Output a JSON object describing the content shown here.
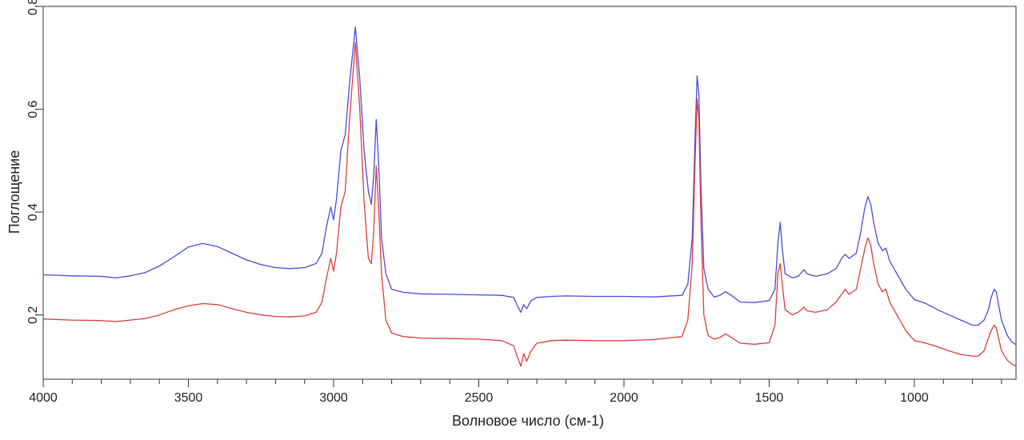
{
  "chart_data": {
    "type": "line",
    "title": "",
    "xlabel": "Волновое число (см-1)",
    "ylabel": "Поглощение",
    "xlim": [
      4000,
      650
    ],
    "ylim": [
      0.075,
      0.8
    ],
    "x_reversed": true,
    "grid": false,
    "legend": "none",
    "xticks": [
      4000,
      3500,
      3000,
      2500,
      2000,
      1500,
      1000
    ],
    "xtick_labels": [
      "4000",
      "3500",
      "3000",
      "2500",
      "2000",
      "1500",
      "1000"
    ],
    "x_minor_step": 100,
    "yticks": [
      0.2,
      0.4,
      0.6,
      0.8
    ],
    "ytick_labels": [
      "0,2",
      "0,4",
      "0,6",
      "0,8"
    ],
    "series": [
      {
        "color": "#4b4bdc",
        "points": [
          [
            4000,
            0.278
          ],
          [
            3900,
            0.276
          ],
          [
            3800,
            0.275
          ],
          [
            3750,
            0.272
          ],
          [
            3700,
            0.276
          ],
          [
            3650,
            0.282
          ],
          [
            3600,
            0.295
          ],
          [
            3550,
            0.313
          ],
          [
            3500,
            0.332
          ],
          [
            3450,
            0.339
          ],
          [
            3400,
            0.333
          ],
          [
            3350,
            0.32
          ],
          [
            3300,
            0.307
          ],
          [
            3250,
            0.298
          ],
          [
            3200,
            0.292
          ],
          [
            3150,
            0.29
          ],
          [
            3100,
            0.292
          ],
          [
            3060,
            0.3
          ],
          [
            3040,
            0.32
          ],
          [
            3025,
            0.37
          ],
          [
            3010,
            0.41
          ],
          [
            3000,
            0.385
          ],
          [
            2990,
            0.425
          ],
          [
            2975,
            0.52
          ],
          [
            2960,
            0.55
          ],
          [
            2945,
            0.65
          ],
          [
            2925,
            0.76
          ],
          [
            2910,
            0.66
          ],
          [
            2895,
            0.52
          ],
          [
            2880,
            0.44
          ],
          [
            2870,
            0.415
          ],
          [
            2862,
            0.47
          ],
          [
            2853,
            0.58
          ],
          [
            2845,
            0.5
          ],
          [
            2835,
            0.35
          ],
          [
            2820,
            0.28
          ],
          [
            2800,
            0.25
          ],
          [
            2760,
            0.244
          ],
          [
            2700,
            0.241
          ],
          [
            2600,
            0.24
          ],
          [
            2500,
            0.239
          ],
          [
            2420,
            0.238
          ],
          [
            2380,
            0.234
          ],
          [
            2365,
            0.215
          ],
          [
            2355,
            0.205
          ],
          [
            2345,
            0.22
          ],
          [
            2335,
            0.212
          ],
          [
            2320,
            0.228
          ],
          [
            2300,
            0.234
          ],
          [
            2250,
            0.236
          ],
          [
            2200,
            0.237
          ],
          [
            2100,
            0.236
          ],
          [
            2000,
            0.236
          ],
          [
            1900,
            0.235
          ],
          [
            1800,
            0.238
          ],
          [
            1780,
            0.26
          ],
          [
            1765,
            0.35
          ],
          [
            1755,
            0.55
          ],
          [
            1748,
            0.665
          ],
          [
            1742,
            0.63
          ],
          [
            1735,
            0.45
          ],
          [
            1725,
            0.29
          ],
          [
            1710,
            0.25
          ],
          [
            1690,
            0.235
          ],
          [
            1670,
            0.238
          ],
          [
            1650,
            0.245
          ],
          [
            1630,
            0.238
          ],
          [
            1600,
            0.225
          ],
          [
            1550,
            0.224
          ],
          [
            1500,
            0.228
          ],
          [
            1480,
            0.25
          ],
          [
            1470,
            0.34
          ],
          [
            1462,
            0.38
          ],
          [
            1455,
            0.33
          ],
          [
            1445,
            0.28
          ],
          [
            1420,
            0.272
          ],
          [
            1400,
            0.275
          ],
          [
            1380,
            0.288
          ],
          [
            1370,
            0.28
          ],
          [
            1340,
            0.275
          ],
          [
            1300,
            0.28
          ],
          [
            1270,
            0.29
          ],
          [
            1250,
            0.31
          ],
          [
            1238,
            0.318
          ],
          [
            1225,
            0.31
          ],
          [
            1200,
            0.32
          ],
          [
            1185,
            0.36
          ],
          [
            1170,
            0.41
          ],
          [
            1160,
            0.43
          ],
          [
            1150,
            0.415
          ],
          [
            1140,
            0.38
          ],
          [
            1125,
            0.34
          ],
          [
            1110,
            0.325
          ],
          [
            1098,
            0.33
          ],
          [
            1085,
            0.305
          ],
          [
            1060,
            0.28
          ],
          [
            1030,
            0.25
          ],
          [
            1000,
            0.23
          ],
          [
            960,
            0.222
          ],
          [
            920,
            0.21
          ],
          [
            880,
            0.2
          ],
          [
            840,
            0.19
          ],
          [
            800,
            0.18
          ],
          [
            780,
            0.18
          ],
          [
            760,
            0.19
          ],
          [
            745,
            0.21
          ],
          [
            735,
            0.235
          ],
          [
            725,
            0.25
          ],
          [
            718,
            0.245
          ],
          [
            710,
            0.22
          ],
          [
            700,
            0.19
          ],
          [
            680,
            0.16
          ],
          [
            665,
            0.148
          ],
          [
            650,
            0.142
          ]
        ]
      },
      {
        "color": "#e03c3c",
        "points": [
          [
            4000,
            0.192
          ],
          [
            3900,
            0.19
          ],
          [
            3800,
            0.189
          ],
          [
            3750,
            0.187
          ],
          [
            3700,
            0.19
          ],
          [
            3650,
            0.193
          ],
          [
            3600,
            0.2
          ],
          [
            3550,
            0.21
          ],
          [
            3500,
            0.218
          ],
          [
            3450,
            0.222
          ],
          [
            3400,
            0.22
          ],
          [
            3350,
            0.212
          ],
          [
            3300,
            0.205
          ],
          [
            3250,
            0.2
          ],
          [
            3200,
            0.197
          ],
          [
            3150,
            0.196
          ],
          [
            3100,
            0.198
          ],
          [
            3060,
            0.205
          ],
          [
            3040,
            0.225
          ],
          [
            3025,
            0.27
          ],
          [
            3010,
            0.31
          ],
          [
            3000,
            0.285
          ],
          [
            2990,
            0.32
          ],
          [
            2975,
            0.41
          ],
          [
            2960,
            0.44
          ],
          [
            2945,
            0.58
          ],
          [
            2925,
            0.73
          ],
          [
            2910,
            0.6
          ],
          [
            2895,
            0.42
          ],
          [
            2880,
            0.31
          ],
          [
            2870,
            0.3
          ],
          [
            2862,
            0.36
          ],
          [
            2853,
            0.49
          ],
          [
            2845,
            0.41
          ],
          [
            2835,
            0.28
          ],
          [
            2820,
            0.19
          ],
          [
            2800,
            0.165
          ],
          [
            2760,
            0.158
          ],
          [
            2700,
            0.155
          ],
          [
            2600,
            0.154
          ],
          [
            2500,
            0.153
          ],
          [
            2420,
            0.15
          ],
          [
            2380,
            0.14
          ],
          [
            2365,
            0.115
          ],
          [
            2355,
            0.1
          ],
          [
            2345,
            0.125
          ],
          [
            2335,
            0.11
          ],
          [
            2320,
            0.13
          ],
          [
            2300,
            0.145
          ],
          [
            2250,
            0.15
          ],
          [
            2200,
            0.151
          ],
          [
            2100,
            0.15
          ],
          [
            2000,
            0.15
          ],
          [
            1900,
            0.152
          ],
          [
            1800,
            0.158
          ],
          [
            1780,
            0.19
          ],
          [
            1765,
            0.3
          ],
          [
            1755,
            0.5
          ],
          [
            1748,
            0.62
          ],
          [
            1742,
            0.58
          ],
          [
            1735,
            0.38
          ],
          [
            1725,
            0.2
          ],
          [
            1710,
            0.16
          ],
          [
            1690,
            0.153
          ],
          [
            1670,
            0.156
          ],
          [
            1650,
            0.163
          ],
          [
            1630,
            0.156
          ],
          [
            1600,
            0.145
          ],
          [
            1550,
            0.143
          ],
          [
            1500,
            0.146
          ],
          [
            1480,
            0.18
          ],
          [
            1470,
            0.28
          ],
          [
            1462,
            0.3
          ],
          [
            1455,
            0.26
          ],
          [
            1445,
            0.21
          ],
          [
            1420,
            0.2
          ],
          [
            1400,
            0.205
          ],
          [
            1380,
            0.215
          ],
          [
            1370,
            0.208
          ],
          [
            1340,
            0.205
          ],
          [
            1300,
            0.21
          ],
          [
            1270,
            0.225
          ],
          [
            1250,
            0.24
          ],
          [
            1238,
            0.25
          ],
          [
            1225,
            0.24
          ],
          [
            1200,
            0.25
          ],
          [
            1185,
            0.29
          ],
          [
            1170,
            0.33
          ],
          [
            1160,
            0.35
          ],
          [
            1150,
            0.335
          ],
          [
            1140,
            0.3
          ],
          [
            1125,
            0.26
          ],
          [
            1110,
            0.245
          ],
          [
            1098,
            0.25
          ],
          [
            1085,
            0.225
          ],
          [
            1060,
            0.2
          ],
          [
            1030,
            0.17
          ],
          [
            1000,
            0.15
          ],
          [
            960,
            0.145
          ],
          [
            920,
            0.138
          ],
          [
            880,
            0.13
          ],
          [
            840,
            0.123
          ],
          [
            800,
            0.12
          ],
          [
            780,
            0.12
          ],
          [
            760,
            0.13
          ],
          [
            745,
            0.155
          ],
          [
            735,
            0.17
          ],
          [
            725,
            0.18
          ],
          [
            718,
            0.175
          ],
          [
            710,
            0.155
          ],
          [
            700,
            0.13
          ],
          [
            680,
            0.112
          ],
          [
            665,
            0.105
          ],
          [
            650,
            0.1
          ]
        ]
      }
    ]
  }
}
